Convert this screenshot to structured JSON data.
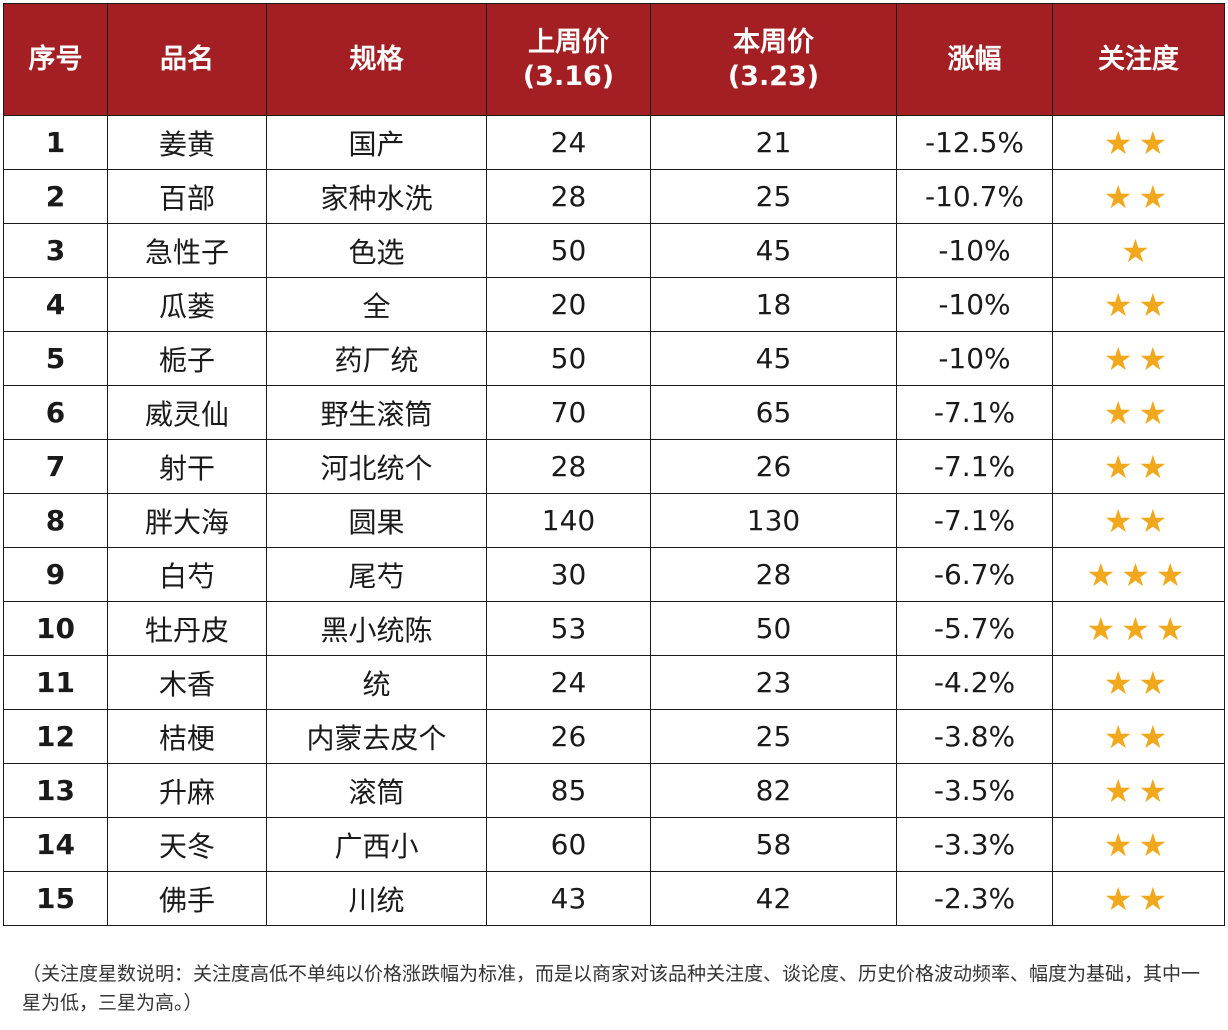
{
  "colors": {
    "header_bg": "#a31f23",
    "header_text": "#ffffff",
    "star": "#f2a81d",
    "border": "#1a1a1a"
  },
  "header": {
    "index": "序号",
    "name": "品名",
    "spec": "规格",
    "last_week_line1": "上周价",
    "last_week_line2": "(3.16)",
    "this_week_line1": "本周价",
    "this_week_line2": "(3.23)",
    "change": "涨幅",
    "attention": "关注度"
  },
  "rows": [
    {
      "index": "1",
      "name": "姜黄",
      "spec": "国产",
      "last": "24",
      "current": "21",
      "change": "-12.5%",
      "stars": 2
    },
    {
      "index": "2",
      "name": "百部",
      "spec": "家种水洗",
      "last": "28",
      "current": "25",
      "change": "-10.7%",
      "stars": 2
    },
    {
      "index": "3",
      "name": "急性子",
      "spec": "色选",
      "last": "50",
      "current": "45",
      "change": "-10%",
      "stars": 1
    },
    {
      "index": "4",
      "name": "瓜蒌",
      "spec": "全",
      "last": "20",
      "current": "18",
      "change": "-10%",
      "stars": 2
    },
    {
      "index": "5",
      "name": "栀子",
      "spec": "药厂统",
      "last": "50",
      "current": "45",
      "change": "-10%",
      "stars": 2
    },
    {
      "index": "6",
      "name": "威灵仙",
      "spec": "野生滚筒",
      "last": "70",
      "current": "65",
      "change": "-7.1%",
      "stars": 2
    },
    {
      "index": "7",
      "name": "射干",
      "spec": "河北统个",
      "last": "28",
      "current": "26",
      "change": "-7.1%",
      "stars": 2
    },
    {
      "index": "8",
      "name": "胖大海",
      "spec": "圆果",
      "last": "140",
      "current": "130",
      "change": "-7.1%",
      "stars": 2
    },
    {
      "index": "9",
      "name": "白芍",
      "spec": "尾芍",
      "last": "30",
      "current": "28",
      "change": "-6.7%",
      "stars": 3
    },
    {
      "index": "10",
      "name": "牡丹皮",
      "spec": "黑小统陈",
      "last": "53",
      "current": "50",
      "change": "-5.7%",
      "stars": 3
    },
    {
      "index": "11",
      "name": "木香",
      "spec": "统",
      "last": "24",
      "current": "23",
      "change": "-4.2%",
      "stars": 2
    },
    {
      "index": "12",
      "name": "桔梗",
      "spec": "内蒙去皮个",
      "last": "26",
      "current": "25",
      "change": "-3.8%",
      "stars": 2
    },
    {
      "index": "13",
      "name": "升麻",
      "spec": "滚筒",
      "last": "85",
      "current": "82",
      "change": "-3.5%",
      "stars": 2
    },
    {
      "index": "14",
      "name": "天冬",
      "spec": "广西小",
      "last": "60",
      "current": "58",
      "change": "-3.3%",
      "stars": 2
    },
    {
      "index": "15",
      "name": "佛手",
      "spec": "川统",
      "last": "43",
      "current": "42",
      "change": "-2.3%",
      "stars": 2
    }
  ],
  "note": "（关注度星数说明：关注度高低不单纯以价格涨跌幅为标准，而是以商家对该品种关注度、谈论度、历史价格波动频率、幅度为基础，其中一星为低，三星为高。）"
}
